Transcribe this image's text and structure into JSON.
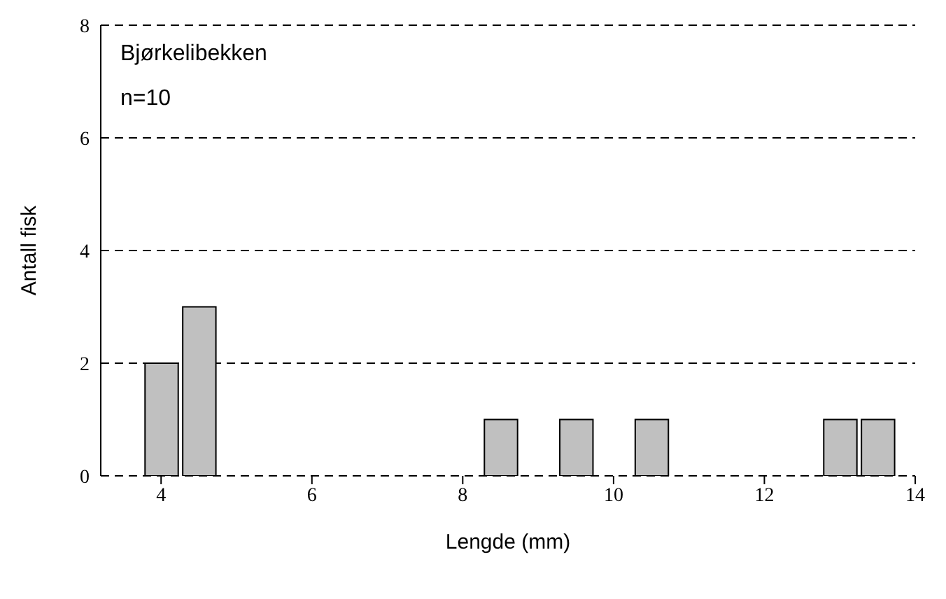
{
  "chart_data": {
    "type": "bar",
    "xlabel": "Lengde (mm)",
    "ylabel": "Antall fisk",
    "annotations": [
      "Bjørkelibekken",
      "n=10"
    ],
    "x": [
      4,
      4.5,
      5,
      5.5,
      6,
      6.5,
      7,
      7.5,
      8,
      8.5,
      9,
      9.5,
      10,
      10.5,
      11,
      11.5,
      12,
      12.5,
      13,
      13.5
    ],
    "values": [
      2,
      3,
      0,
      0,
      0,
      0,
      0,
      0,
      0,
      1,
      0,
      1,
      0,
      1,
      0,
      0,
      0,
      0,
      1,
      1
    ],
    "color": "#c0c0c0",
    "xlim": [
      3.2,
      14
    ],
    "xticks": [
      4,
      6,
      8,
      10,
      12,
      14
    ],
    "ylim": [
      0,
      8
    ],
    "yticks": [
      0,
      2,
      4,
      6,
      8
    ],
    "grid": "y",
    "legend": false
  }
}
